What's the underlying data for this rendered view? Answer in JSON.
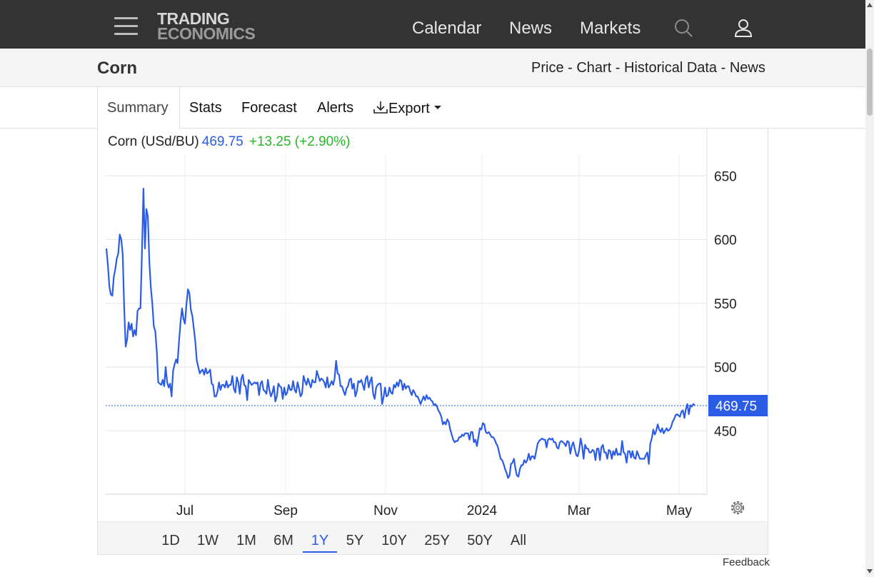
{
  "nav": {
    "logo_line1": "TRADING",
    "logo_line2": "ECONOMICS",
    "links": [
      "Calendar",
      "News",
      "Markets"
    ]
  },
  "page": {
    "title": "Corn",
    "subnav": "Price - Chart - Historical Data - News"
  },
  "tabs": [
    "Summary",
    "Stats",
    "Forecast",
    "Alerts",
    "Export"
  ],
  "chart_header": {
    "label": "Corn (USd/BU)",
    "price": "469.75",
    "change": "+13.25 (+2.90%)"
  },
  "chart_data": {
    "type": "line",
    "series": [
      {
        "values": [
          593,
          580,
          563,
          557,
          556,
          571,
          577,
          585,
          589,
          604,
          600,
          589,
          547,
          516,
          522,
          535,
          529,
          534,
          524,
          529,
          525,
          544,
          546,
          546,
          590,
          640,
          593,
          624,
          618,
          582,
          562,
          550,
          532,
          528,
          512,
          488,
          487,
          486,
          490,
          485,
          500,
          488,
          484,
          487,
          477,
          497,
          502,
          506,
          503,
          520,
          535,
          546,
          538,
          534,
          549,
          561,
          558,
          545,
          540,
          530,
          520,
          505,
          500,
          495,
          497,
          498,
          494,
          499,
          495,
          496,
          498,
          487,
          486,
          477,
          477,
          481,
          488,
          482,
          486,
          486,
          484,
          489,
          484,
          486,
          486,
          493,
          483,
          480,
          492,
          488,
          479,
          491,
          494,
          486,
          485,
          474,
          490,
          488,
          486,
          487,
          488,
          487,
          488,
          478,
          487,
          489,
          482,
          481,
          479,
          490,
          482,
          477,
          480,
          485,
          473,
          477,
          487,
          485,
          484,
          475,
          484,
          478,
          480,
          486,
          482,
          482,
          489,
          482,
          480,
          488,
          483,
          477,
          479,
          493,
          489,
          486,
          491,
          487,
          484,
          490,
          488,
          488,
          497,
          493,
          489,
          491,
          490,
          488,
          484,
          492,
          484,
          486,
          489,
          486,
          491,
          505,
          495,
          494,
          485,
          485,
          481,
          478,
          483,
          485,
          490,
          491,
          483,
          487,
          477,
          481,
          489,
          488,
          490,
          486,
          482,
          491,
          493,
          484,
          489,
          492,
          479,
          475,
          484,
          486,
          487,
          487,
          471,
          476,
          484,
          477,
          478,
          484,
          480,
          479,
          486,
          484,
          488,
          485,
          490,
          489,
          482,
          487,
          483,
          485,
          485,
          481,
          478,
          482,
          480,
          477,
          477,
          474,
          471,
          474,
          477,
          474,
          478,
          475,
          476,
          474,
          473,
          470,
          471,
          469,
          466,
          464,
          461,
          455,
          457,
          455,
          459,
          457,
          451,
          447,
          443,
          441,
          442,
          442,
          445,
          445,
          447,
          446,
          448,
          448,
          448,
          443,
          449,
          449,
          441,
          443,
          438,
          445,
          452,
          451,
          456,
          455,
          449,
          448,
          449,
          447,
          445,
          445,
          443,
          440,
          438,
          433,
          428,
          427,
          424,
          420,
          417,
          413,
          415,
          424,
          425,
          428,
          420,
          415,
          414,
          420,
          423,
          423,
          427,
          425,
          427,
          432,
          427,
          430,
          430,
          428,
          434,
          440,
          442,
          443,
          444,
          443,
          443,
          437,
          443,
          444,
          443,
          444,
          441,
          441,
          437,
          436,
          441,
          442,
          441,
          440,
          438,
          442,
          441,
          432,
          438,
          441,
          436,
          431,
          430,
          435,
          444,
          438,
          428,
          439,
          436,
          436,
          433,
          433,
          435,
          434,
          427,
          436,
          436,
          427,
          437,
          439,
          433,
          433,
          428,
          435,
          434,
          428,
          434,
          431,
          436,
          431,
          432,
          431,
          442,
          433,
          432,
          425,
          434,
          434,
          429,
          434,
          429,
          428,
          434,
          431,
          428,
          428,
          428,
          428,
          431,
          433,
          424,
          440,
          444,
          451,
          447,
          450,
          455,
          451,
          449,
          452,
          448,
          450,
          452,
          450,
          451,
          453,
          457,
          459,
          462,
          463,
          462,
          461,
          465,
          466,
          460,
          467,
          471,
          463,
          470,
          469,
          471,
          470
        ]
      }
    ],
    "x_ticks": [
      "Jul",
      "Sep",
      "Nov",
      "2024",
      "Mar",
      "May"
    ],
    "y_ticks": [
      650,
      600,
      550,
      500,
      450
    ],
    "ylim": [
      410,
      675
    ],
    "last_value_label": "469.75",
    "last_value": 469.75
  },
  "ranges": [
    "1D",
    "1W",
    "1M",
    "6M",
    "1Y",
    "5Y",
    "10Y",
    "25Y",
    "50Y",
    "All"
  ],
  "active_range": "1Y",
  "feedback": "Feedback",
  "colors": {
    "topnav_bg": "#333333",
    "line": "#2b5ce6",
    "change_positive": "#2bb52b"
  }
}
